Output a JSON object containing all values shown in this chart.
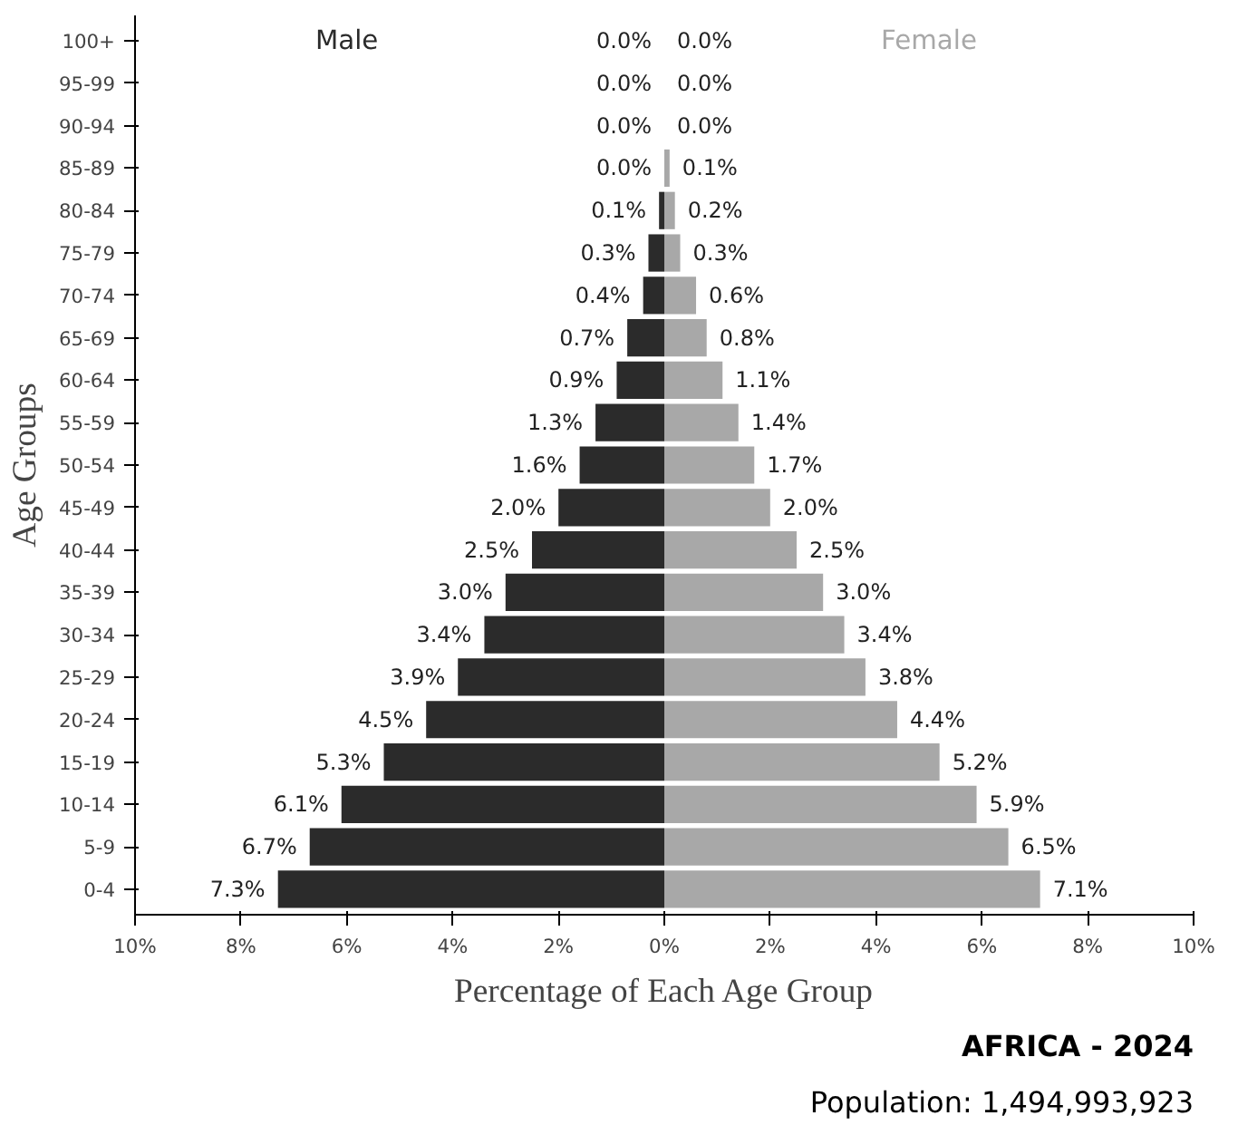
{
  "chart_data": {
    "type": "bar",
    "orientation": "horizontal",
    "categories": [
      "100+",
      "95-99",
      "90-94",
      "85-89",
      "80-84",
      "75-79",
      "70-74",
      "65-69",
      "60-64",
      "55-59",
      "50-54",
      "45-49",
      "40-44",
      "35-39",
      "30-34",
      "25-29",
      "20-24",
      "15-19",
      "10-14",
      "5-9",
      "0-4"
    ],
    "series": [
      {
        "name": "Male",
        "color": "#2b2b2b",
        "values": [
          0.0,
          0.0,
          0.0,
          0.0,
          0.1,
          0.3,
          0.4,
          0.7,
          0.9,
          1.3,
          1.6,
          2.0,
          2.5,
          3.0,
          3.4,
          3.9,
          4.5,
          5.3,
          6.1,
          6.7,
          7.3
        ],
        "base": [
          null,
          null,
          null,
          null,
          -0.1,
          -0.3,
          -0.4,
          -0.7,
          -0.9,
          -1.3,
          -1.6,
          -2.0,
          -2.5,
          -3.0,
          -3.4,
          -3.9,
          -4.5,
          -5.3,
          -6.1,
          -6.7,
          -7.3
        ],
        "value_labels": [
          "0.0%",
          "0.0%",
          "0.0%",
          "0.0%",
          "0.1%",
          "0.3%",
          "0.4%",
          "0.7%",
          "0.9%",
          "1.3%",
          "1.6%",
          "2.0%",
          "2.5%",
          "3.0%",
          "3.4%",
          "3.9%",
          "4.5%",
          "5.3%",
          "6.1%",
          "6.7%",
          "7.3%"
        ]
      },
      {
        "name": "Female",
        "color": "#a8a8a8",
        "values": [
          0.0,
          0.0,
          0.0,
          0.1,
          0.2,
          0.3,
          0.6,
          0.8,
          1.1,
          1.4,
          1.7,
          2.0,
          2.5,
          3.0,
          3.4,
          3.8,
          4.4,
          5.2,
          5.9,
          6.5,
          7.1
        ],
        "value_labels": [
          "0.0%",
          "0.0%",
          "0.0%",
          "0.1%",
          "0.2%",
          "0.3%",
          "0.6%",
          "0.8%",
          "1.1%",
          "1.4%",
          "1.7%",
          "2.0%",
          "2.5%",
          "3.0%",
          "3.4%",
          "3.8%",
          "4.4%",
          "5.2%",
          "5.9%",
          "6.5%",
          "7.1%"
        ]
      }
    ],
    "xlim": [
      -10,
      10
    ],
    "xticks": [
      {
        "value": -10,
        "label": "10%"
      },
      {
        "value": -8,
        "label": "8%"
      },
      {
        "value": -6,
        "label": "6%"
      },
      {
        "value": -4,
        "label": "4%"
      },
      {
        "value": -2,
        "label": "2%"
      },
      {
        "value": 0,
        "label": "0%"
      },
      {
        "value": 2,
        "label": "2%"
      },
      {
        "value": 4,
        "label": "4%"
      },
      {
        "value": 6,
        "label": "6%"
      },
      {
        "value": 8,
        "label": "8%"
      },
      {
        "value": 10,
        "label": "10%"
      }
    ],
    "xlabel": "Percentage of Each Age Group",
    "ylabel": "Age Groups",
    "annotations": [
      "AFRICA - 2024",
      "Population: 1,494,993,923"
    ],
    "grid": false,
    "legend": false
  }
}
